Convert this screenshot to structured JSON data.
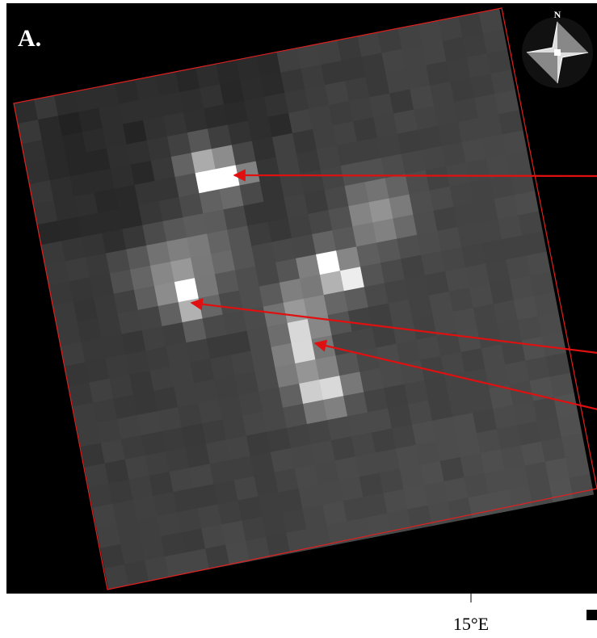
{
  "panel_label": "A.",
  "compass": "N",
  "axis_label": "15°E"
}
